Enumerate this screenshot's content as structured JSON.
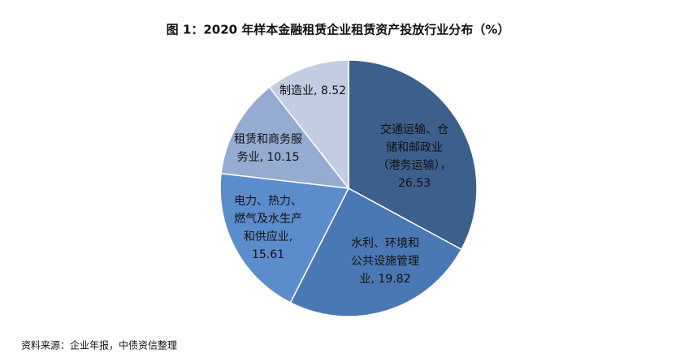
{
  "chart_data": {
    "type": "pie",
    "title": "图 1：2020 年样本金融租赁企业租赁资产投放行业分布（%）",
    "values": [
      26.53,
      19.82,
      15.61,
      10.15,
      8.52
    ],
    "value_labels": [
      [
        "交通运输、仓",
        "储和邮政业",
        "（港务运输），",
        "26.53"
      ],
      [
        "水利、环境和",
        "公共设施管理",
        "业, 19.82"
      ],
      [
        "电力、热力、",
        "燃气及水生产",
        "和供应业,",
        "15.61"
      ],
      [
        "租赁和商务服",
        "务业, 10.15"
      ],
      [
        "制造业, 8.52"
      ]
    ],
    "colors": [
      "#3d5f8c",
      "#4a78b4",
      "#5b8ccc",
      "#95abd2",
      "#c3cde2"
    ],
    "source": "资料来源：企业年报，中债资信整理"
  }
}
